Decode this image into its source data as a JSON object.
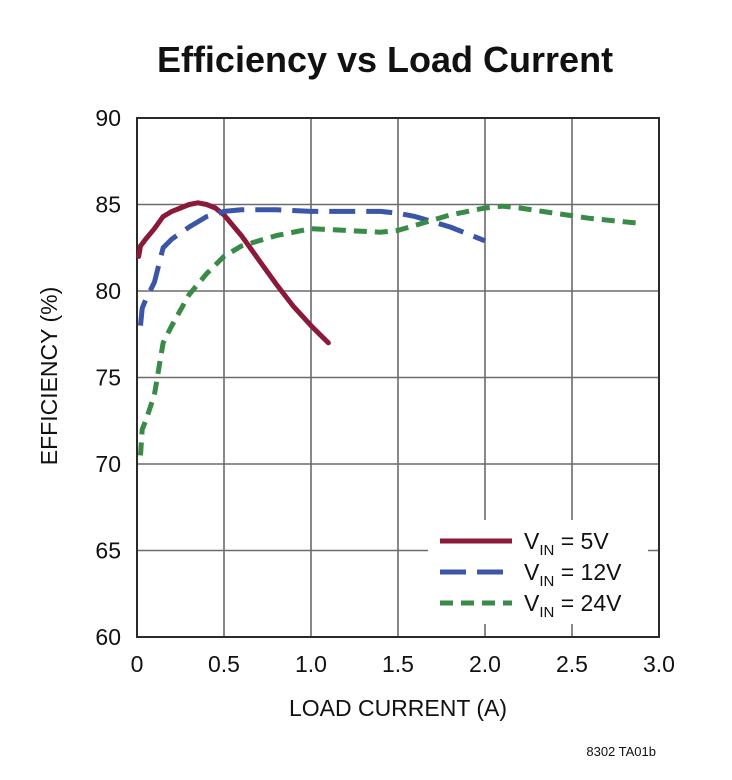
{
  "chart_data": {
    "type": "line",
    "title": "Efficiency vs Load Current",
    "xlabel": "LOAD CURRENT (A)",
    "ylabel": "EFFICIENCY (%)",
    "xlim": [
      0,
      3.0
    ],
    "ylim": [
      60,
      90
    ],
    "x_ticks": [
      "0",
      "0.5",
      "1.0",
      "1.5",
      "2.0",
      "2.5",
      "3.0"
    ],
    "y_ticks": [
      "60",
      "65",
      "70",
      "75",
      "80",
      "85",
      "90"
    ],
    "grid": true,
    "legend_position": "bottom-right",
    "series": [
      {
        "name": "VIN = 5V",
        "label_main": "V",
        "label_sub": "IN",
        "label_rest": " = 5V",
        "color": "#8b1a3a",
        "style": "solid",
        "x": [
          0.01,
          0.02,
          0.05,
          0.1,
          0.15,
          0.2,
          0.25,
          0.3,
          0.35,
          0.4,
          0.45,
          0.5,
          0.6,
          0.7,
          0.8,
          0.9,
          1.0,
          1.05,
          1.1
        ],
        "y": [
          82.0,
          82.6,
          83.0,
          83.6,
          84.3,
          84.6,
          84.8,
          85.0,
          85.1,
          85.0,
          84.8,
          84.4,
          83.2,
          81.8,
          80.4,
          79.1,
          78.0,
          77.5,
          77.0
        ]
      },
      {
        "name": "VIN = 12V",
        "label_main": "V",
        "label_sub": "IN",
        "label_rest": " = 12V",
        "color": "#3b56a6",
        "style": "long-dash",
        "x": [
          0.02,
          0.03,
          0.05,
          0.1,
          0.15,
          0.2,
          0.3,
          0.4,
          0.5,
          0.6,
          0.8,
          1.0,
          1.2,
          1.4,
          1.5,
          1.6,
          1.7,
          1.8,
          1.9,
          2.0
        ],
        "y": [
          78.0,
          79.0,
          79.5,
          80.5,
          82.5,
          83.0,
          83.7,
          84.3,
          84.6,
          84.7,
          84.7,
          84.6,
          84.6,
          84.6,
          84.5,
          84.3,
          84.0,
          83.7,
          83.3,
          82.9
        ]
      },
      {
        "name": "VIN = 24V",
        "label_main": "V",
        "label_sub": "IN",
        "label_rest": " = 24V",
        "color": "#3a8a48",
        "style": "dash",
        "x": [
          0.02,
          0.03,
          0.05,
          0.1,
          0.15,
          0.2,
          0.3,
          0.4,
          0.5,
          0.6,
          0.8,
          1.0,
          1.2,
          1.4,
          1.5,
          1.6,
          1.8,
          2.0,
          2.1,
          2.2,
          2.4,
          2.6,
          2.8,
          2.9
        ],
        "y": [
          70.5,
          72.0,
          72.5,
          74.0,
          77.0,
          78.0,
          79.8,
          81.0,
          82.0,
          82.6,
          83.2,
          83.6,
          83.5,
          83.4,
          83.5,
          83.8,
          84.4,
          84.8,
          84.9,
          84.8,
          84.5,
          84.2,
          84.0,
          83.9
        ]
      }
    ],
    "figure_id": "8302 TA01b"
  }
}
